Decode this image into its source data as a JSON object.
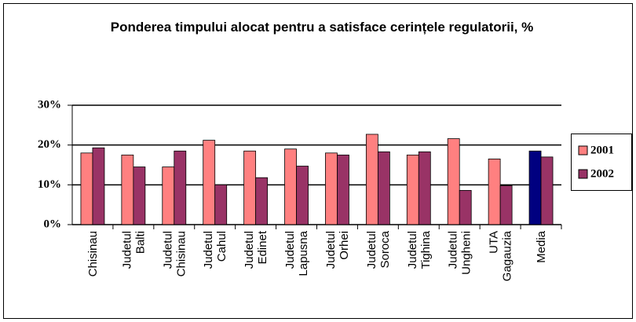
{
  "chart_data": {
    "type": "bar",
    "title": "Ponderea timpului alocat pentru a satisface cerințele regulatorii, %",
    "categories": [
      "Chisinau",
      "Judetul Balti",
      "Judetul Chisinau",
      "Judetul Cahul",
      "Judetul Edinet",
      "Judetul Lapusna",
      "Judetul Orhei",
      "Judetul Soroca",
      "Judetul Tighina",
      "Judetul Ungheni",
      "UTA Gagauzia",
      "Media"
    ],
    "series": [
      {
        "name": "2001",
        "color": "#ff8080",
        "colors": [
          "#ff8080",
          "#ff8080",
          "#ff8080",
          "#ff8080",
          "#ff8080",
          "#ff8080",
          "#ff8080",
          "#ff8080",
          "#ff8080",
          "#ff8080",
          "#ff8080",
          "#000080"
        ],
        "values": [
          18,
          17.5,
          14.5,
          21.2,
          18.5,
          19,
          18,
          22.7,
          17.5,
          21.6,
          16.5,
          18.5
        ]
      },
      {
        "name": "2002",
        "color": "#993366",
        "values": [
          19.3,
          14.5,
          18.5,
          10,
          11.8,
          14.7,
          17.5,
          18.3,
          18.3,
          8.6,
          9.8,
          17
        ]
      }
    ],
    "ylim": [
      0,
      30
    ],
    "yticks": [
      {
        "value": 0,
        "label": "0%"
      },
      {
        "value": 10,
        "label": "10%"
      },
      {
        "value": 20,
        "label": "20%"
      },
      {
        "value": 30,
        "label": "30%"
      }
    ],
    "grid": true,
    "legend": "right"
  }
}
